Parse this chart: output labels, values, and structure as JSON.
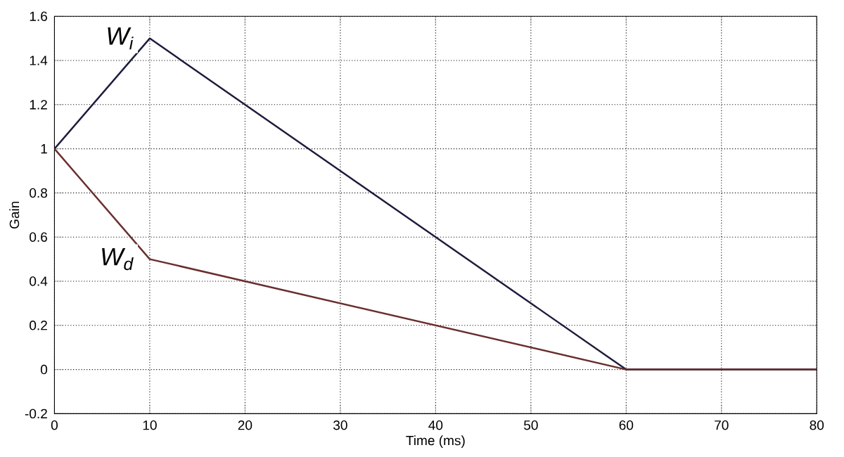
{
  "chart_data": {
    "type": "line",
    "xlabel": "Time (ms)",
    "ylabel": "Gain",
    "series": [
      {
        "name": "W$_{i}$",
        "color": "#1c1c3c",
        "x": [
          0,
          10,
          60,
          80
        ],
        "values": [
          1,
          1.5,
          0,
          0
        ]
      },
      {
        "name": "W$_{d}$",
        "color": "#6a2e2e",
        "x": [
          0,
          10,
          60,
          80
        ],
        "values": [
          1,
          0.5,
          0,
          0
        ]
      }
    ],
    "xlim": [
      0,
      80
    ],
    "ylim": [
      -0.2,
      1.6
    ],
    "xticks": [
      0,
      10,
      20,
      30,
      40,
      50,
      60,
      70,
      80
    ],
    "yticks": [
      -0.2,
      0,
      0.2,
      0.4,
      0.6,
      0.8,
      1,
      1.2,
      1.4,
      1.6
    ],
    "grid": true
  }
}
